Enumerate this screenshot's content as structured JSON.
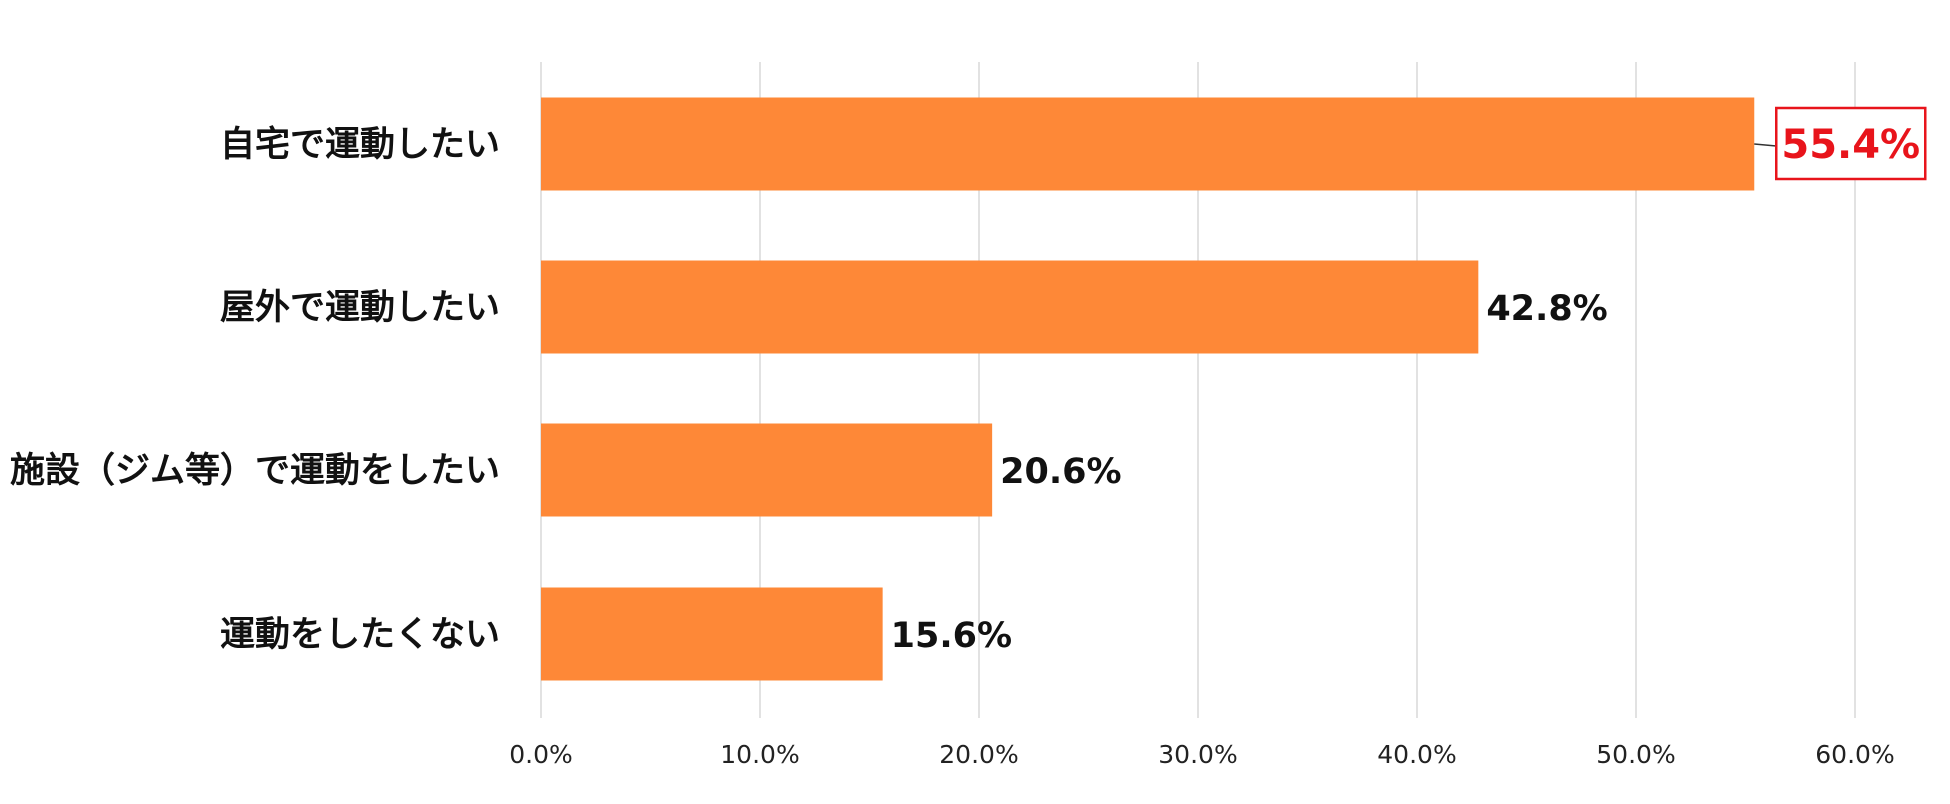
{
  "chart_data": {
    "type": "bar",
    "orientation": "horizontal",
    "categories": [
      "自宅で運動したい",
      "屋外で運動したい",
      "施設（ジム等）で運動をしたい",
      "運動をしたくない"
    ],
    "values": [
      55.4,
      42.8,
      20.6,
      15.6
    ],
    "value_labels": [
      "55.4%",
      "42.8%",
      "20.6%",
      "15.6%"
    ],
    "highlight_index": 0,
    "xlim": [
      0,
      60
    ],
    "x_ticks": [
      0,
      10,
      20,
      30,
      40,
      50,
      60
    ],
    "x_tick_labels": [
      "0.0%",
      "10.0%",
      "20.0%",
      "30.0%",
      "40.0%",
      "50.0%",
      "60.0%"
    ],
    "title": "",
    "xlabel": "",
    "ylabel": "",
    "grid": "vertical",
    "legend": "none",
    "colors": {
      "bar": "#fe8837",
      "grid": "#d9d9d9",
      "highlight_text": "#e8141b",
      "highlight_border": "#e8141b",
      "label_text": "#111111"
    }
  }
}
